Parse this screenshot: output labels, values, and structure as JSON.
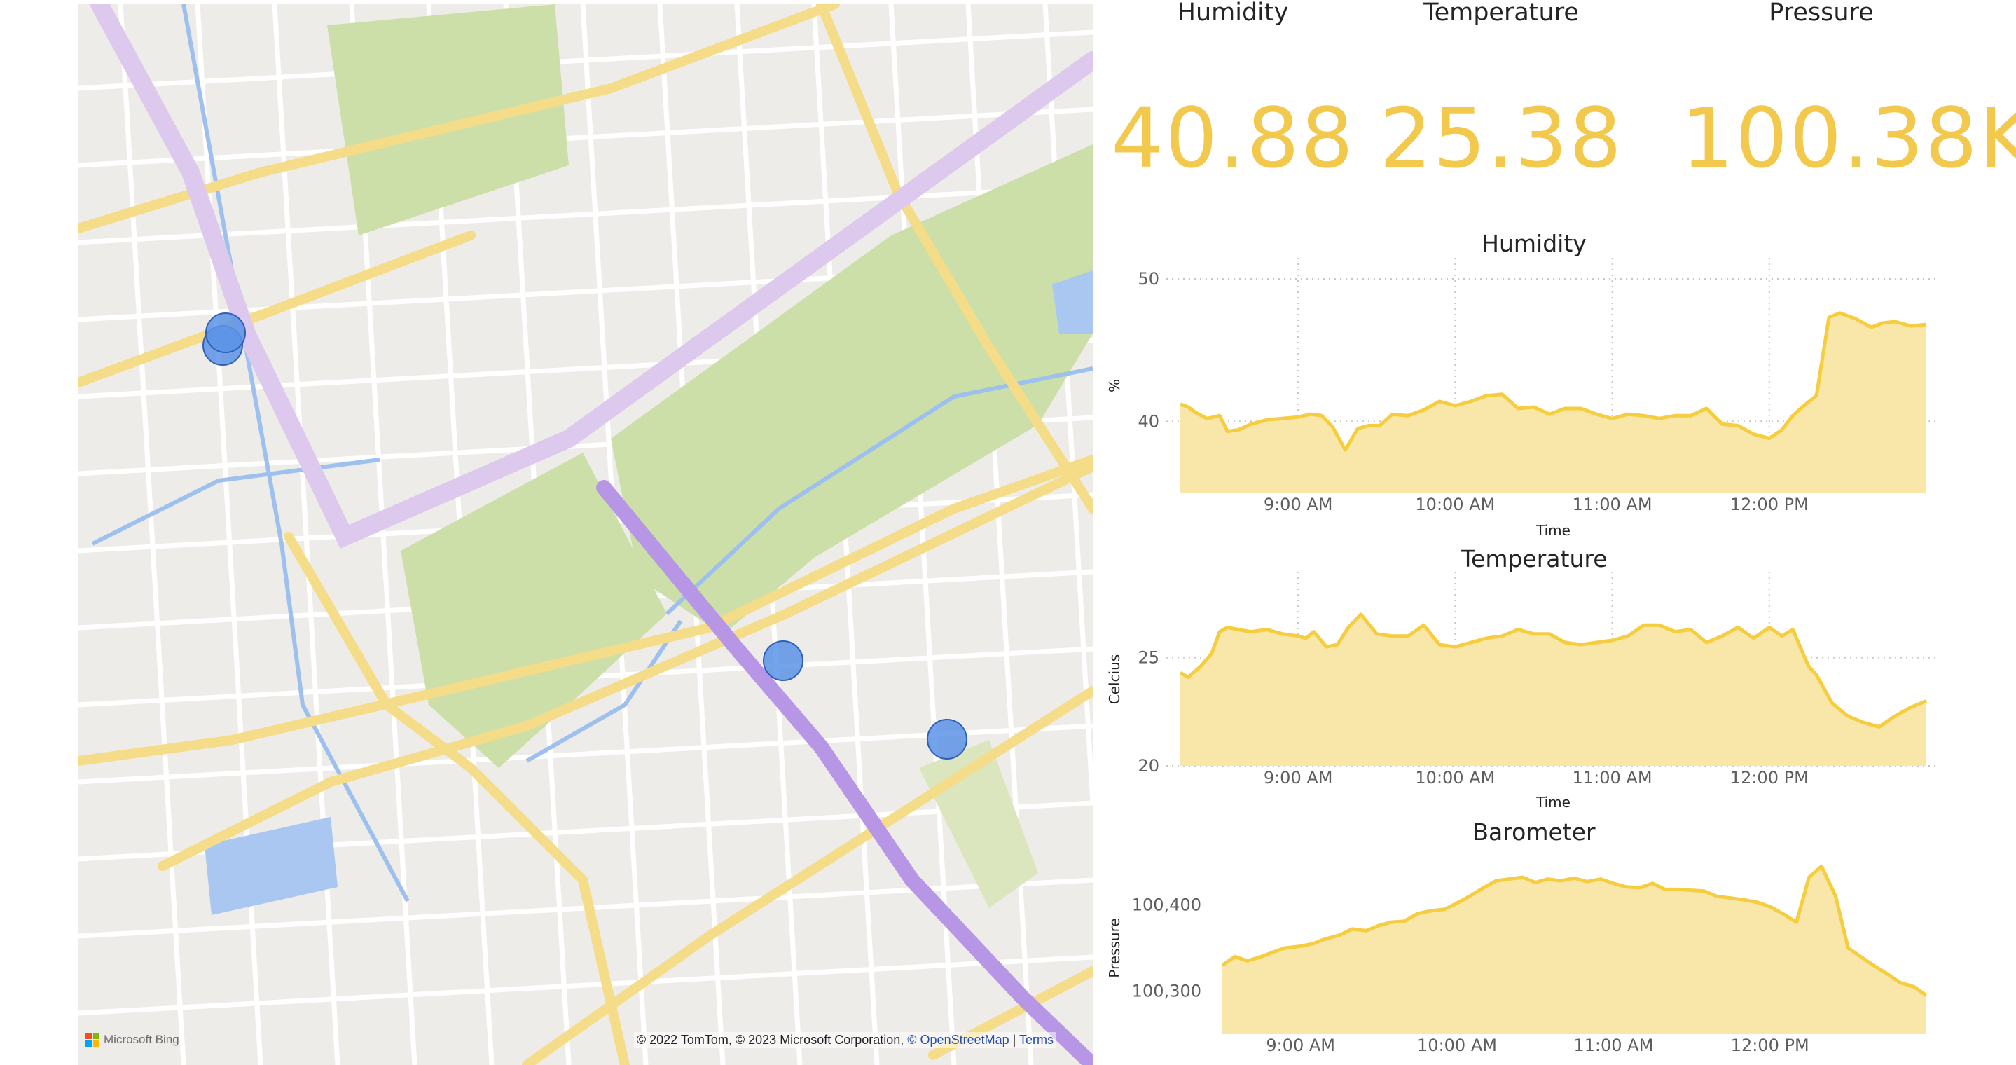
{
  "map": {
    "attribution": "© 2022 TomTom, © 2023 Microsoft Corporation,",
    "osm_link": "© OpenStreetMap",
    "terms_link": "Terms",
    "brand": "Microsoft Bing",
    "brand_icon": "microsoft-logo-icon",
    "marker_color": "#5b93e6",
    "markers": [
      {
        "lat_label": "marker-1"
      },
      {
        "lat_label": "marker-2"
      },
      {
        "lat_label": "marker-3"
      },
      {
        "lat_label": "marker-4"
      }
    ]
  },
  "kpis": [
    {
      "title": "Humidity",
      "value": "40.88"
    },
    {
      "title": "Temperature",
      "value": "25.38"
    },
    {
      "title": "Pressure",
      "value": "100.38K"
    }
  ],
  "colors": {
    "accent": "#f2c94c",
    "area_fill": "#f9e7a9",
    "line": "#f5cd3f",
    "text": "#252423",
    "tick": "#605e5c"
  },
  "chart_data": [
    {
      "type": "area",
      "title": "Humidity",
      "xlabel": "Time",
      "ylabel": "%",
      "x_ticks": [
        "9:00 AM",
        "10:00 AM",
        "11:00 AM",
        "12:00 PM"
      ],
      "y_ticks": [
        40,
        50
      ],
      "ylim": [
        35,
        50
      ],
      "x_range_hours": [
        8.25,
        13.0
      ],
      "grid": true,
      "series": [
        {
          "x": [
            8.25,
            8.3,
            8.35,
            8.42,
            8.5,
            8.55,
            8.62,
            8.7,
            8.8,
            8.9,
            9.0,
            9.08,
            9.15,
            9.22,
            9.3,
            9.38,
            9.45,
            9.52,
            9.6,
            9.7,
            9.8,
            9.9,
            10.0,
            10.1,
            10.2,
            10.3,
            10.4,
            10.5,
            10.6,
            10.7,
            10.8,
            10.9,
            11.0,
            11.1,
            11.2,
            11.3,
            11.4,
            11.5,
            11.6,
            11.7,
            11.8,
            11.9,
            12.0,
            12.08,
            12.15,
            12.22,
            12.3,
            12.38,
            12.45,
            12.55,
            12.65,
            12.72,
            12.8,
            12.9,
            13.0
          ],
          "y": [
            41.2,
            41.0,
            40.6,
            40.2,
            40.4,
            39.3,
            39.4,
            39.8,
            40.1,
            40.2,
            40.3,
            40.5,
            40.4,
            39.6,
            38.0,
            39.5,
            39.7,
            39.7,
            40.5,
            40.4,
            40.8,
            41.4,
            41.1,
            41.4,
            41.8,
            41.9,
            40.9,
            41.0,
            40.5,
            40.9,
            40.9,
            40.5,
            40.2,
            40.5,
            40.4,
            40.2,
            40.4,
            40.4,
            40.9,
            39.8,
            39.7,
            39.1,
            38.8,
            39.4,
            40.4,
            41.1,
            41.8,
            47.3,
            47.6,
            47.2,
            46.6,
            46.9,
            47.0,
            46.7,
            46.8
          ]
        }
      ]
    },
    {
      "type": "area",
      "title": "Temperature",
      "xlabel": "Time",
      "ylabel": "Celcius",
      "x_ticks": [
        "9:00 AM",
        "10:00 AM",
        "11:00 AM",
        "12:00 PM"
      ],
      "y_ticks": [
        20,
        25
      ],
      "ylim": [
        20,
        28
      ],
      "x_range_hours": [
        8.25,
        13.0
      ],
      "grid": true,
      "series": [
        {
          "x": [
            8.25,
            8.3,
            8.38,
            8.45,
            8.5,
            8.55,
            8.62,
            8.7,
            8.8,
            8.9,
            9.0,
            9.05,
            9.1,
            9.18,
            9.25,
            9.32,
            9.4,
            9.5,
            9.6,
            9.7,
            9.8,
            9.9,
            10.0,
            10.1,
            10.2,
            10.3,
            10.4,
            10.5,
            10.6,
            10.7,
            10.8,
            10.9,
            11.0,
            11.1,
            11.2,
            11.3,
            11.4,
            11.5,
            11.6,
            11.7,
            11.8,
            11.9,
            12.0,
            12.08,
            12.15,
            12.25,
            12.3,
            12.4,
            12.5,
            12.6,
            12.7,
            12.8,
            12.9,
            13.0
          ],
          "y": [
            24.3,
            24.1,
            24.6,
            25.2,
            26.2,
            26.4,
            26.3,
            26.2,
            26.3,
            26.1,
            26.0,
            25.9,
            26.2,
            25.5,
            25.6,
            26.4,
            27.0,
            26.1,
            26.0,
            26.0,
            26.5,
            25.6,
            25.5,
            25.7,
            25.9,
            26.0,
            26.3,
            26.1,
            26.1,
            25.7,
            25.6,
            25.7,
            25.8,
            26.0,
            26.5,
            26.5,
            26.2,
            26.3,
            25.7,
            26.0,
            26.4,
            25.9,
            26.4,
            26.0,
            26.3,
            24.6,
            24.2,
            22.9,
            22.3,
            22.0,
            21.8,
            22.3,
            22.7,
            23.0
          ]
        }
      ]
    },
    {
      "type": "area",
      "title": "Barometer",
      "xlabel": "",
      "ylabel": "Pressure",
      "x_ticks": [
        "9:00 AM",
        "10:00 AM",
        "11:00 AM",
        "12:00 PM"
      ],
      "y_ticks": [
        100300,
        100400
      ],
      "ylim": [
        100250,
        100450
      ],
      "x_range_hours": [
        8.5,
        13.0
      ],
      "grid": false,
      "series": [
        {
          "x": [
            8.5,
            8.58,
            8.66,
            8.75,
            8.82,
            8.9,
            9.0,
            9.08,
            9.15,
            9.25,
            9.33,
            9.42,
            9.5,
            9.58,
            9.66,
            9.75,
            9.83,
            9.92,
            10.0,
            10.08,
            10.17,
            10.25,
            10.33,
            10.42,
            10.5,
            10.58,
            10.66,
            10.75,
            10.83,
            10.92,
            11.0,
            11.08,
            11.17,
            11.25,
            11.33,
            11.42,
            11.5,
            11.58,
            11.66,
            11.75,
            11.83,
            11.92,
            12.0,
            12.08,
            12.17,
            12.25,
            12.3,
            12.33,
            12.42,
            12.5,
            12.58,
            12.66,
            12.75,
            12.83,
            12.92,
            13.0
          ],
          "y": [
            100330,
            100340,
            100335,
            100340,
            100345,
            100350,
            100352,
            100355,
            100360,
            100365,
            100372,
            100370,
            100376,
            100380,
            100381,
            100390,
            100393,
            100395,
            100402,
            100410,
            100420,
            100428,
            100430,
            100432,
            100426,
            100430,
            100428,
            100431,
            100427,
            100430,
            100425,
            100421,
            100420,
            100425,
            100418,
            100418,
            100417,
            100416,
            100410,
            100408,
            100406,
            100403,
            100398,
            100390,
            100380,
            100432,
            100440,
            100445,
            100410,
            100350,
            100340,
            100330,
            100320,
            100310,
            100305,
            100295
          ]
        }
      ]
    }
  ]
}
